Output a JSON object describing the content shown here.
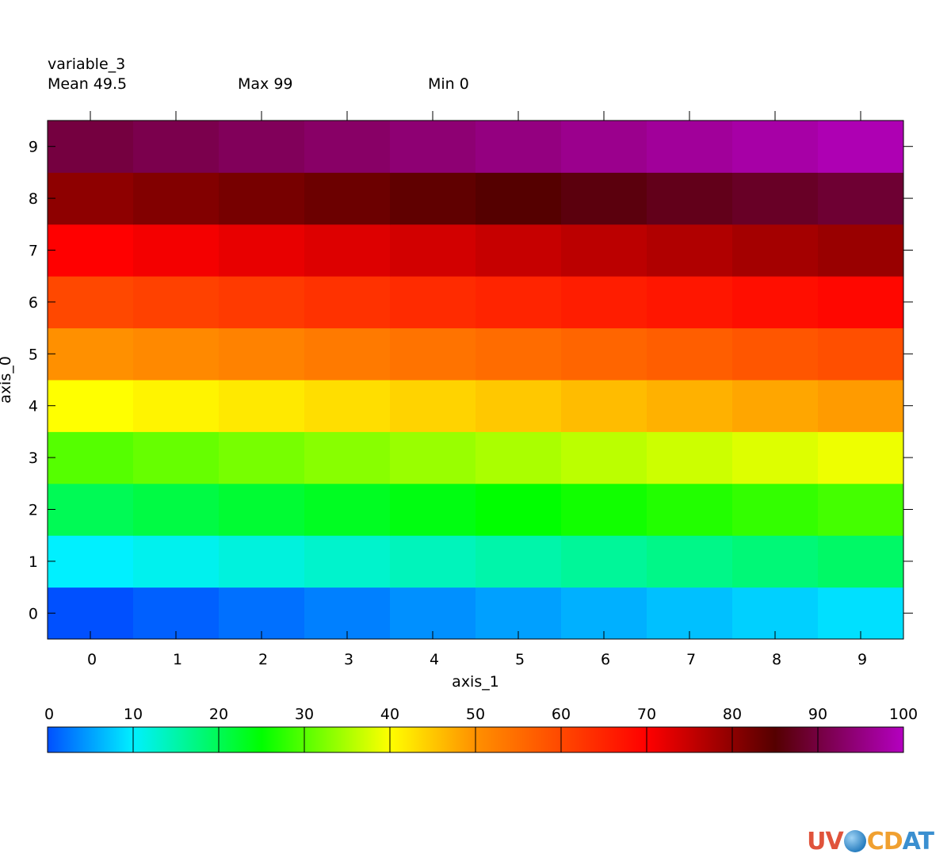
{
  "header": {
    "title": "variable_3",
    "mean": "Mean 49.5",
    "max": "Max 99",
    "min": "Min 0"
  },
  "logo": {
    "uv": "UV",
    "cd": "CD",
    "at": "AT"
  },
  "chart_data": {
    "type": "heatmap",
    "title": "variable_3",
    "xlabel": "axis_1",
    "ylabel": "axis_0",
    "x": [
      0,
      1,
      2,
      3,
      4,
      5,
      6,
      7,
      8,
      9
    ],
    "y": [
      0,
      1,
      2,
      3,
      4,
      5,
      6,
      7,
      8,
      9
    ],
    "xlim": [
      -0.5,
      9.5
    ],
    "ylim": [
      -0.5,
      9.5
    ],
    "values": [
      [
        0,
        1,
        2,
        3,
        4,
        5,
        6,
        7,
        8,
        9
      ],
      [
        10,
        11,
        12,
        13,
        14,
        15,
        16,
        17,
        18,
        19
      ],
      [
        20,
        21,
        22,
        23,
        24,
        25,
        26,
        27,
        28,
        29
      ],
      [
        30,
        31,
        32,
        33,
        34,
        35,
        36,
        37,
        38,
        39
      ],
      [
        40,
        41,
        42,
        43,
        44,
        45,
        46,
        47,
        48,
        49
      ],
      [
        50,
        51,
        52,
        53,
        54,
        55,
        56,
        57,
        58,
        59
      ],
      [
        60,
        61,
        62,
        63,
        64,
        65,
        66,
        67,
        68,
        69
      ],
      [
        70,
        71,
        72,
        73,
        74,
        75,
        76,
        77,
        78,
        79
      ],
      [
        80,
        81,
        82,
        83,
        84,
        85,
        86,
        87,
        88,
        89
      ],
      [
        90,
        91,
        92,
        93,
        94,
        95,
        96,
        97,
        98,
        99
      ]
    ],
    "colorbar": {
      "min": 0,
      "max": 100,
      "ticks": [
        0,
        10,
        20,
        30,
        40,
        50,
        60,
        70,
        80,
        90,
        100
      ],
      "colors": [
        "#0050ff",
        "#00f0ff",
        "#00ff00",
        "#ffff00",
        "#ff9000",
        "#ff0000",
        "#550000",
        "#b400c0"
      ],
      "color_positions": [
        0,
        10,
        25,
        40,
        50,
        70,
        85,
        100
      ]
    }
  }
}
